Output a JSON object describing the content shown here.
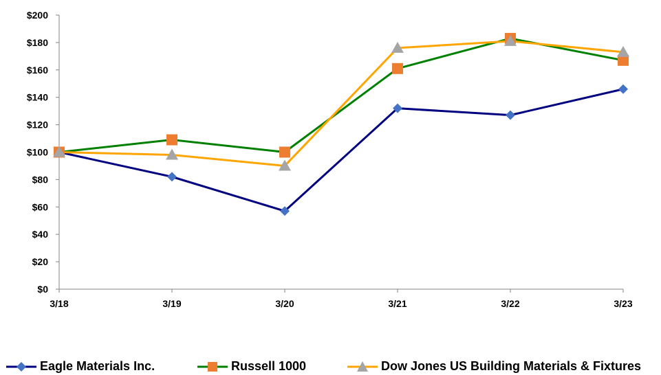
{
  "chart_data": {
    "type": "line",
    "title": "",
    "xlabel": "",
    "ylabel": "",
    "categories": [
      "3/18",
      "3/19",
      "3/20",
      "3/21",
      "3/22",
      "3/23"
    ],
    "y_ticks": [
      "$0",
      "$20",
      "$40",
      "$60",
      "$80",
      "$100",
      "$120",
      "$140",
      "$160",
      "$180",
      "$200"
    ],
    "ylim": [
      0,
      200
    ],
    "grid": false,
    "legend_position": "bottom",
    "series": [
      {
        "name": "Eagle Materials Inc.",
        "values": [
          100,
          82,
          57,
          132,
          127,
          146
        ],
        "color": "#000080",
        "marker_color": "#4472C4",
        "marker": "diamond"
      },
      {
        "name": "Russell 1000",
        "values": [
          100,
          109,
          100,
          161,
          183,
          167
        ],
        "color": "#008000",
        "marker_color": "#ED7D31",
        "marker": "square"
      },
      {
        "name": "Dow Jones US Building Materials & Fixtures",
        "values": [
          100,
          98,
          90,
          176,
          181,
          173
        ],
        "color": "#FFA500",
        "marker_color": "#A5A5A5",
        "marker": "triangle"
      }
    ]
  }
}
